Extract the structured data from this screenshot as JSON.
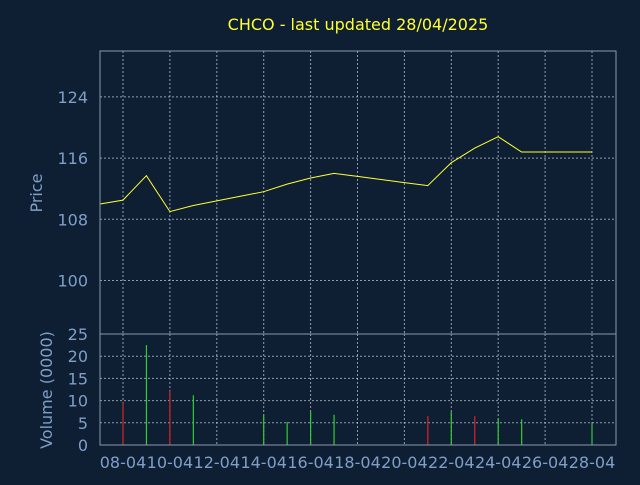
{
  "chart_data": {
    "type": "line",
    "title": "CHCO - last updated 28/04/2025",
    "dates": [
      "08-04",
      "09-04",
      "10-04",
      "11-04",
      "12-04",
      "13-04",
      "14-04",
      "15-04",
      "16-04",
      "17-04",
      "18-04",
      "19-04",
      "20-04",
      "21-04",
      "22-04",
      "23-04",
      "24-04",
      "25-04",
      "26-04",
      "27-04",
      "28-04"
    ],
    "x_tick_labels": [
      "08-04",
      "10-04",
      "12-04",
      "14-04",
      "16-04",
      "18-04",
      "20-04",
      "22-04",
      "24-04",
      "26-04",
      "28-04"
    ],
    "price_panel": {
      "ylabel": "Price",
      "ylim": [
        93,
        130
      ],
      "y_ticks": [
        100,
        108,
        116,
        124
      ],
      "grid": true,
      "series": [
        {
          "color": "#ffff33",
          "points": [
            {
              "x": "07-04",
              "y": 110.0
            },
            {
              "x": "08-04",
              "y": 110.5
            },
            {
              "x": "09-04",
              "y": 113.7
            },
            {
              "x": "10-04",
              "y": 109.0
            },
            {
              "x": "11-04",
              "y": 109.8
            },
            {
              "x": "12-04",
              "y": 110.4
            },
            {
              "x": "13-04",
              "y": 111.0
            },
            {
              "x": "14-04",
              "y": 111.6
            },
            {
              "x": "15-04",
              "y": 112.6
            },
            {
              "x": "16-04",
              "y": 113.4
            },
            {
              "x": "17-04",
              "y": 114.0
            },
            {
              "x": "18-04",
              "y": 113.6
            },
            {
              "x": "19-04",
              "y": 113.2
            },
            {
              "x": "20-04",
              "y": 112.8
            },
            {
              "x": "21-04",
              "y": 112.4
            },
            {
              "x": "22-04",
              "y": 115.4
            },
            {
              "x": "23-04",
              "y": 117.3
            },
            {
              "x": "24-04",
              "y": 118.8
            },
            {
              "x": "25-04",
              "y": 116.8
            },
            {
              "x": "26-04",
              "y": 116.8
            },
            {
              "x": "27-04",
              "y": 116.8
            },
            {
              "x": "28-04",
              "y": 116.8
            }
          ]
        }
      ]
    },
    "volume_panel": {
      "type": "bar",
      "ylabel": "Volume (0000)",
      "ylim": [
        0,
        25
      ],
      "y_ticks": [
        0,
        5,
        10,
        15,
        20,
        25
      ],
      "grid": true,
      "up_color": "#33cc33",
      "down_color": "#dd2222",
      "bars": [
        {
          "x": "08-04",
          "value": 9.5,
          "direction": "down"
        },
        {
          "x": "09-04",
          "value": 22.5,
          "direction": "up"
        },
        {
          "x": "10-04",
          "value": 12.2,
          "direction": "down"
        },
        {
          "x": "11-04",
          "value": 11.2,
          "direction": "up"
        },
        {
          "x": "14-04",
          "value": 6.8,
          "direction": "up"
        },
        {
          "x": "15-04",
          "value": 5.2,
          "direction": "up"
        },
        {
          "x": "16-04",
          "value": 7.5,
          "direction": "up"
        },
        {
          "x": "17-04",
          "value": 6.8,
          "direction": "up"
        },
        {
          "x": "21-04",
          "value": 6.5,
          "direction": "down"
        },
        {
          "x": "22-04",
          "value": 7.5,
          "direction": "up"
        },
        {
          "x": "23-04",
          "value": 6.5,
          "direction": "down"
        },
        {
          "x": "24-04",
          "value": 6.0,
          "direction": "up"
        },
        {
          "x": "25-04",
          "value": 5.8,
          "direction": "up"
        },
        {
          "x": "28-04",
          "value": 4.8,
          "direction": "up"
        }
      ]
    },
    "colors": {
      "background": "#0f1f33",
      "text": "#7f9fc8",
      "title": "#ffff33",
      "grid": "#c8d2dc",
      "frame": "#8899aa"
    }
  }
}
